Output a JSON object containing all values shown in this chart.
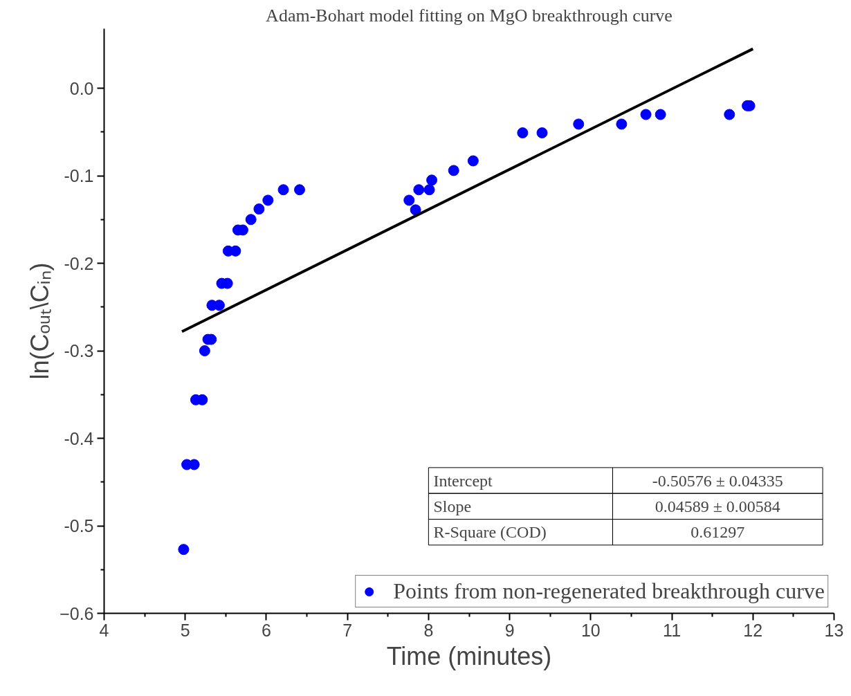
{
  "chart_data": {
    "type": "scatter",
    "title": "Adam-Bohart model fitting on MgO breakthrough curve",
    "xlabel": "Time (minutes)",
    "ylabel": "ln(Cₒᵤₜ\\Cᵢₙ)",
    "xlim": [
      4,
      13
    ],
    "xticks": [
      4,
      5,
      6,
      7,
      8,
      9,
      10,
      11,
      12,
      13
    ],
    "ylim": [
      -0.6,
      0.068
    ],
    "yticks": [
      {
        "value": -0.6,
        "label": "−0.6"
      },
      -0.5,
      -0.4,
      -0.3,
      -0.2,
      -0.1,
      {
        "value": 0,
        "label": "0.0"
      }
    ],
    "grid": false,
    "legend": "bottom right",
    "series": [
      {
        "name": "Points from non-regenerated breakthrough curve",
        "marker": "circle",
        "color": "#0000ff",
        "x": [
          4.98,
          5.02,
          5.11,
          5.13,
          5.21,
          5.24,
          5.28,
          5.32,
          5.33,
          5.42,
          5.45,
          5.52,
          5.53,
          5.62,
          5.65,
          5.71,
          5.81,
          5.91,
          6.02,
          6.21,
          6.41,
          7.76,
          7.84,
          7.88,
          8.01,
          8.04,
          8.31,
          8.55,
          9.16,
          9.4,
          9.85,
          10.38,
          10.68,
          10.86,
          11.71,
          11.93,
          11.96
        ],
        "values": [
          -0.527,
          -0.43,
          -0.43,
          -0.356,
          -0.356,
          -0.3,
          -0.287,
          -0.287,
          -0.248,
          -0.248,
          -0.223,
          -0.223,
          -0.186,
          -0.186,
          -0.162,
          -0.162,
          -0.15,
          -0.138,
          -0.128,
          -0.116,
          -0.116,
          -0.128,
          -0.139,
          -0.116,
          -0.116,
          -0.105,
          -0.094,
          -0.083,
          -0.051,
          -0.051,
          -0.041,
          -0.041,
          -0.03,
          -0.03,
          -0.03,
          -0.02,
          -0.02
        ]
      },
      {
        "type": "line",
        "color": "#000000",
        "x": [
          4.96,
          12.0
        ],
        "values": [
          -0.278,
          0.045
        ]
      }
    ],
    "annotations": [
      "Intercept",
      "-0.50576 ± 0.04335",
      "Slope",
      "0.04589 ± 0.00584",
      "R-Square (COD)",
      "0.61297"
    ]
  }
}
